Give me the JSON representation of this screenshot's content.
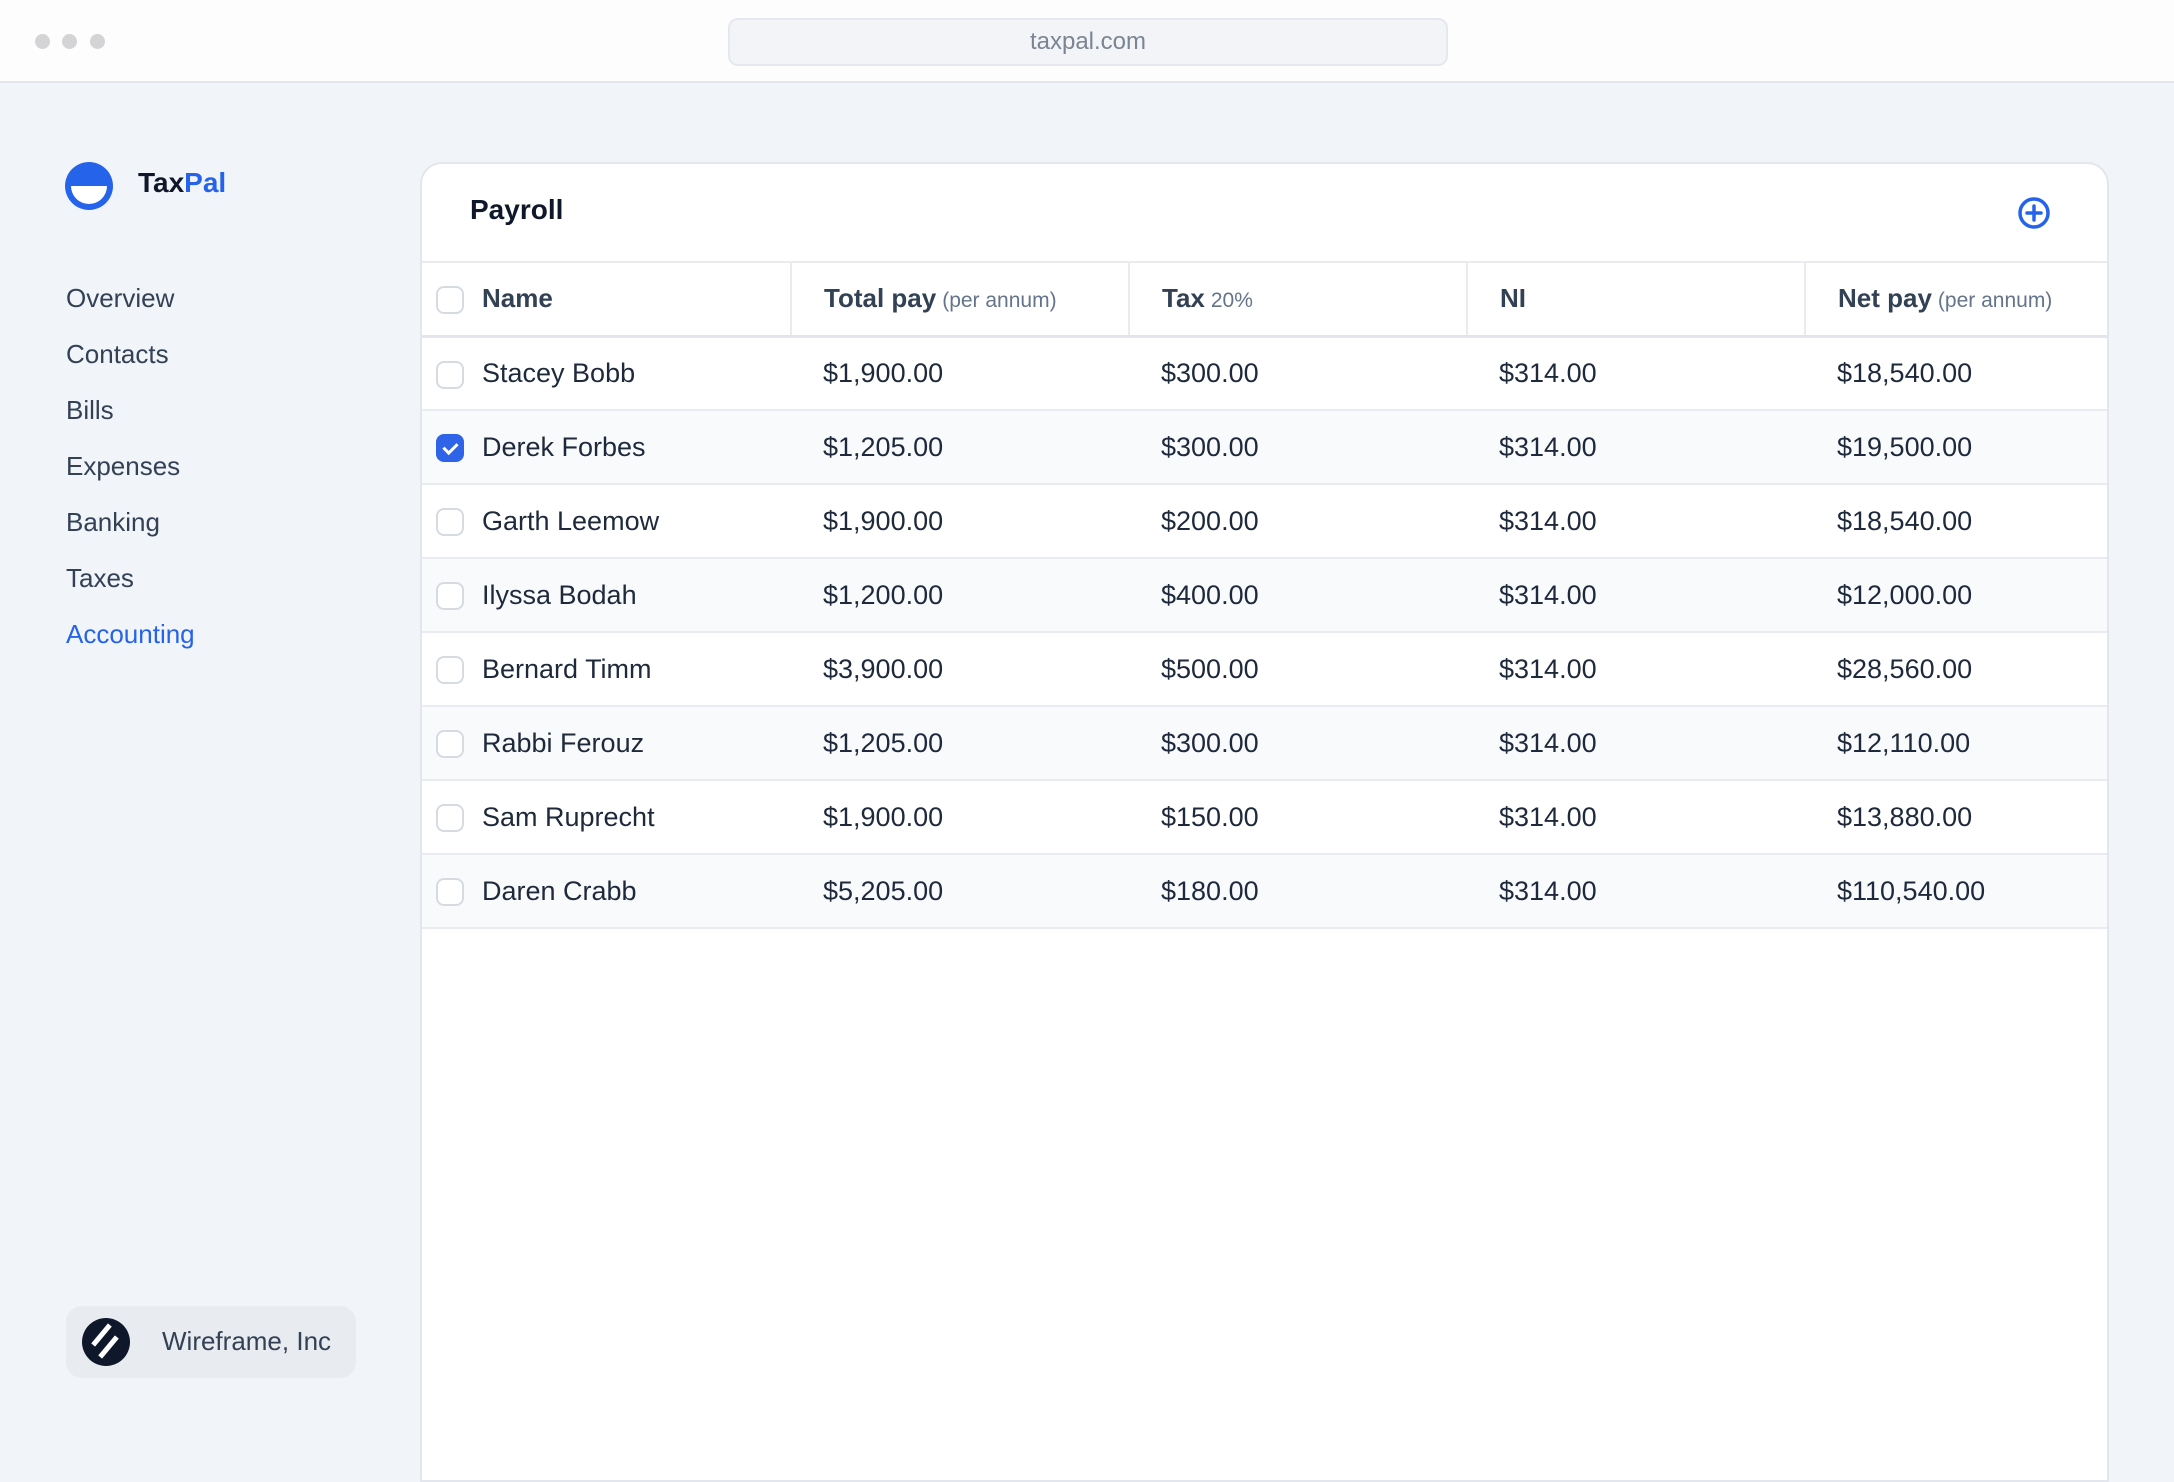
{
  "browser": {
    "url": "taxpal.com"
  },
  "brand": {
    "part1": "Tax",
    "part2": "Pal",
    "accent": "#2563eb"
  },
  "sidebar": {
    "items": [
      {
        "label": "Overview"
      },
      {
        "label": "Contacts"
      },
      {
        "label": "Bills"
      },
      {
        "label": "Expenses"
      },
      {
        "label": "Banking"
      },
      {
        "label": "Taxes"
      },
      {
        "label": "Accounting",
        "active": true
      }
    ],
    "org": {
      "name": "Wireframe, Inc",
      "icon": "wireframe-logo-icon"
    }
  },
  "panel": {
    "title": "Payroll",
    "add_icon": "plus-circle-icon",
    "columns": [
      {
        "label": "Name",
        "sub": ""
      },
      {
        "label": "Total pay",
        "sub": "(per annum)"
      },
      {
        "label": "Tax",
        "sub": "20%"
      },
      {
        "label": "NI",
        "sub": ""
      },
      {
        "label": "Net pay",
        "sub": "(per annum)"
      }
    ],
    "rows": [
      {
        "name": "Stacey Bobb",
        "total": "$1,900.00",
        "tax": "$300.00",
        "ni": "$314.00",
        "net": "$18,540.00",
        "checked": false
      },
      {
        "name": "Derek Forbes",
        "total": "$1,205.00",
        "tax": "$300.00",
        "ni": "$314.00",
        "net": "$19,500.00",
        "checked": true
      },
      {
        "name": "Garth Leemow",
        "total": "$1,900.00",
        "tax": "$200.00",
        "ni": "$314.00",
        "net": "$18,540.00",
        "checked": false
      },
      {
        "name": "Ilyssa Bodah",
        "total": "$1,200.00",
        "tax": "$400.00",
        "ni": "$314.00",
        "net": "$12,000.00",
        "checked": false
      },
      {
        "name": "Bernard Timm",
        "total": "$3,900.00",
        "tax": "$500.00",
        "ni": "$314.00",
        "net": "$28,560.00",
        "checked": false
      },
      {
        "name": "Rabbi Ferouz",
        "total": "$1,205.00",
        "tax": "$300.00",
        "ni": "$314.00",
        "net": "$12,110.00",
        "checked": false
      },
      {
        "name": "Sam Ruprecht",
        "total": "$1,900.00",
        "tax": "$150.00",
        "ni": "$314.00",
        "net": "$13,880.00",
        "checked": false
      },
      {
        "name": "Daren Crabb",
        "total": "$5,205.00",
        "tax": "$180.00",
        "ni": "$314.00",
        "net": "$110,540.00",
        "checked": false
      }
    ]
  }
}
